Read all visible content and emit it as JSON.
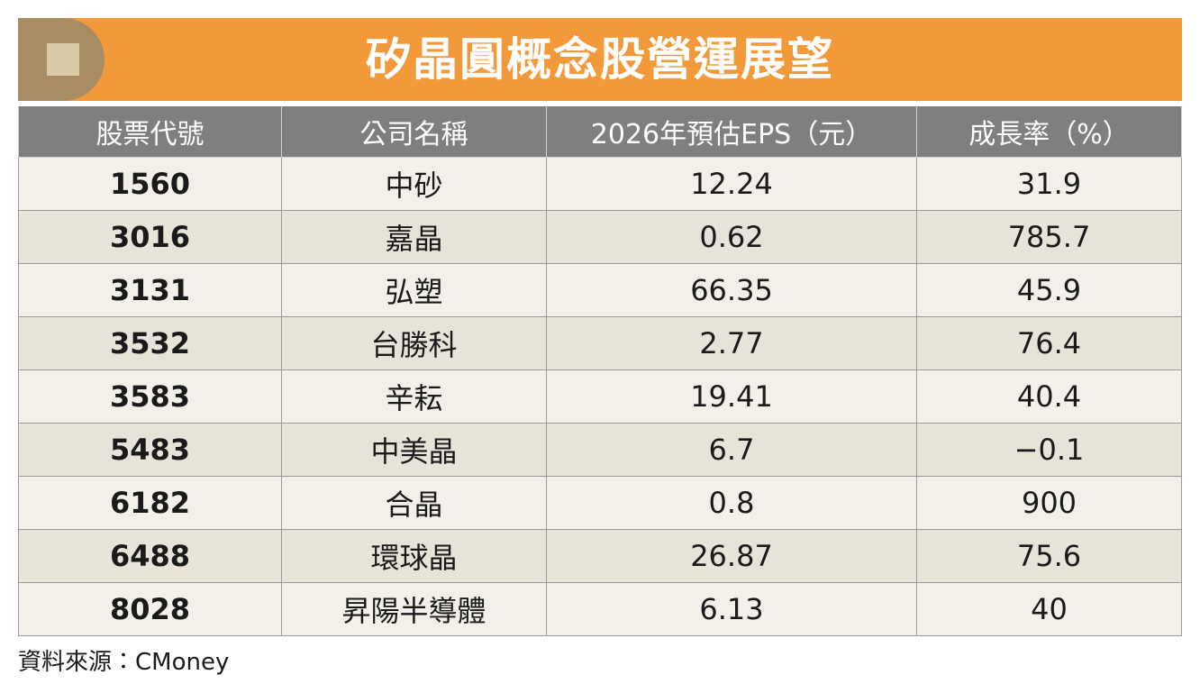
{
  "header": {
    "title": "矽晶圓概念股營運展望"
  },
  "table": {
    "columns": [
      "股票代號",
      "公司名稱",
      "2026年預估EPS（元）",
      "成長率（%）"
    ],
    "rows": [
      [
        "1560",
        "中砂",
        "12.24",
        "31.9"
      ],
      [
        "3016",
        "嘉晶",
        "0.62",
        "785.7"
      ],
      [
        "3131",
        "弘塑",
        "66.35",
        "45.9"
      ],
      [
        "3532",
        "台勝科",
        "2.77",
        "76.4"
      ],
      [
        "3583",
        "辛耘",
        "19.41",
        "40.4"
      ],
      [
        "5483",
        "中美晶",
        "6.7",
        "−0.1"
      ],
      [
        "6182",
        "合晶",
        "0.8",
        "900"
      ],
      [
        "6488",
        "環球晶",
        "26.87",
        "75.6"
      ],
      [
        "8028",
        "昇陽半導體",
        "6.13",
        "40"
      ]
    ]
  },
  "footer": {
    "source": "資料來源：CMoney"
  }
}
